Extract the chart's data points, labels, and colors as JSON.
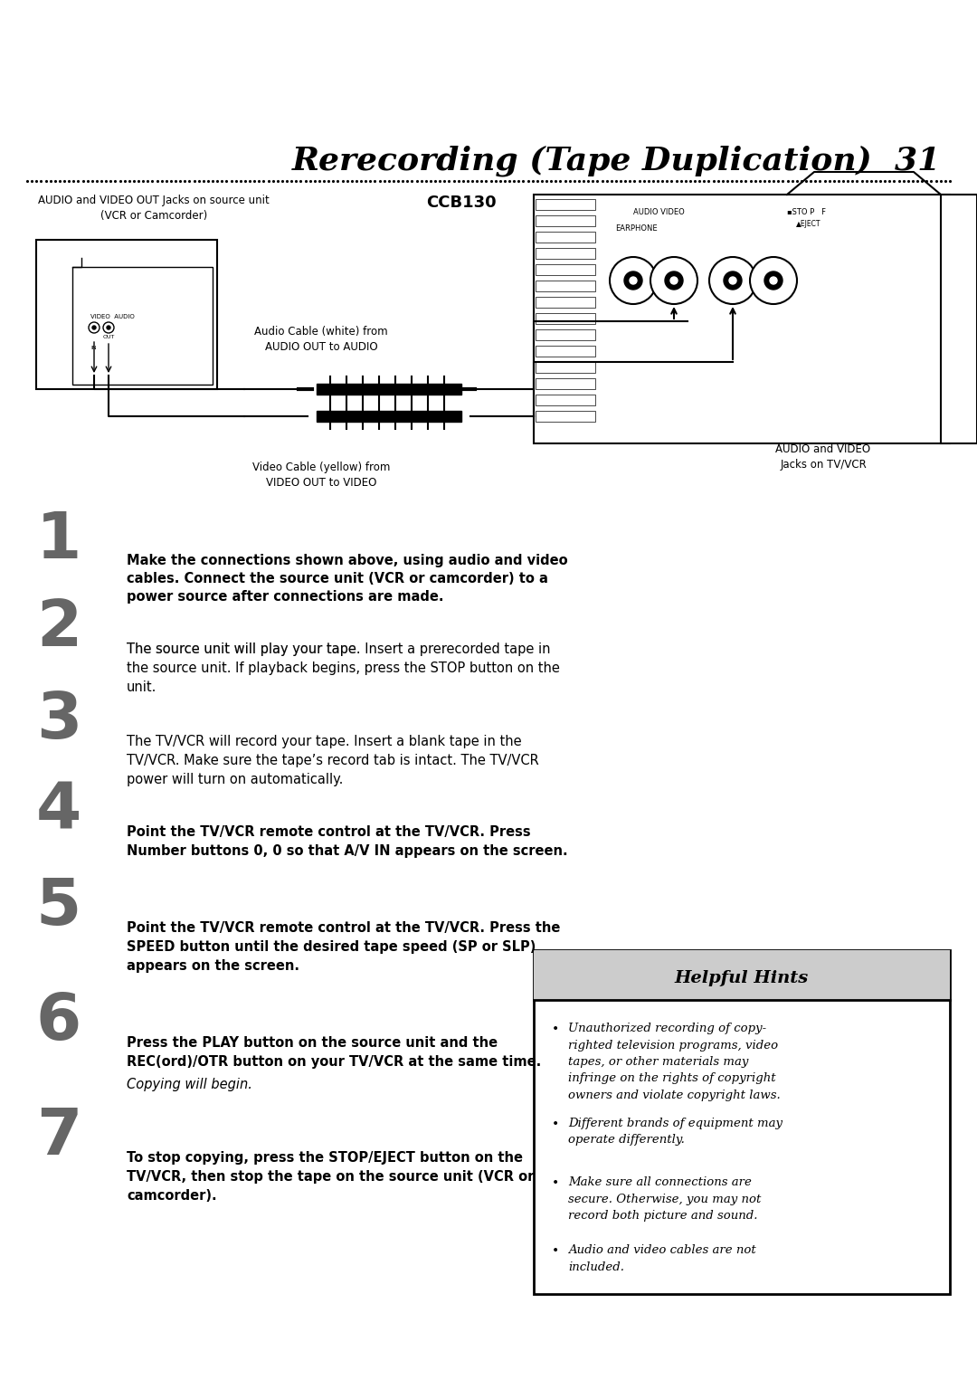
{
  "title": "Rerecording (Tape Duplication)  31",
  "ccb130_label": "CCB130",
  "diagram_caption_source": "AUDIO and VIDEO OUT Jacks on source unit\n(VCR or Camcorder)",
  "diagram_caption_tv": "AUDIO and VIDEO\nJacks on TV/VCR",
  "diagram_caption_audio_cable": "Audio Cable (white) from\nAUDIO OUT to AUDIO",
  "diagram_caption_video_cable": "Video Cable (yellow) from\nVIDEO OUT to VIDEO",
  "step1_bold": "Make the connections shown above, using audio and video\ncables. Connect the source unit (VCR or camcorder) to a\npower source after connections are made.",
  "step2_normal1": "The source unit will play your tape. ",
  "step2_bold": "Insert a prerecorded tape in\nthe source unit.",
  "step2_normal2": " If playback begins, press the STOP button on the\nunit.",
  "step3_normal1": "The TV/VCR will record your tape. ",
  "step3_bold": "Insert a blank tape in the\nTV/VCR.",
  "step3_normal2": " Make sure the tape’s record tab is intact. The TV/VCR\npower will turn on automatically.",
  "step4_bold": "Point the TV/VCR remote control at the TV/VCR. Press\nNumber buttons 0, 0 so that A/V IN appears on the screen.",
  "step5_bold": "Point the TV/VCR remote control at the TV/VCR. Press the\nSPEED button until the desired tape speed (SP or SLP)\nappears on the screen.",
  "step6_bold": "Press the PLAY button on the source unit and the\nREC(ord)/OTR button on your TV/VCR at the same time.",
  "step6_normal": "Copying will begin.",
  "step7_bold": "To stop copying, press the STOP/EJECT button on the\nTV/VCR, then stop the tape on the source unit (VCR or\ncamcorder).",
  "hints_title": "Helpful Hints",
  "hint1": "Unauthorized recording of copy-\nrighted television programs, video\ntapes, or other materials may\ninfringe on the rights of copyright\nowners and violate copyright laws.",
  "hint2": "Different brands of equipment may\noperate differently.",
  "hint3": "Make sure all connections are\nsecure. Otherwise, you may not\nrecord both picture and sound.",
  "hint4": "Audio and video cables are not\nincluded.",
  "bg_color": "#ffffff",
  "text_color": "#000000",
  "hint_box_bg": "#cccccc",
  "num_color": "#666666"
}
